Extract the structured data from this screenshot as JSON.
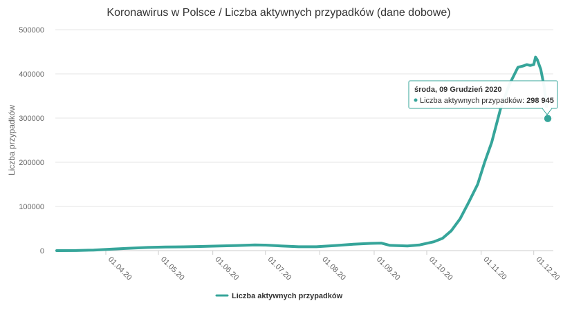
{
  "chart_data": {
    "type": "line",
    "title": "Koronawirus w Polsce / Liczba aktywnych przypadków (dane dobowe)",
    "xlabel": "",
    "ylabel": "Liczba przypadków",
    "ylim": [
      0,
      500000
    ],
    "yticks": [
      0,
      100000,
      200000,
      300000,
      400000,
      500000
    ],
    "ytick_labels": [
      "0",
      "100000",
      "200000",
      "300000",
      "400000",
      "500000"
    ],
    "xlim": [
      "2020-03-04",
      "2020-12-09"
    ],
    "xticks": [
      "2020-04-01",
      "2020-05-01",
      "2020-06-01",
      "2020-07-01",
      "2020-08-01",
      "2020-09-01",
      "2020-10-01",
      "2020-11-01",
      "2020-12-01"
    ],
    "xtick_labels": [
      "01.04.20",
      "01.05.20",
      "01.06.20",
      "01.07.20",
      "01.08.20",
      "01.09.20",
      "01.10.20",
      "01.11.20",
      "01.12.20"
    ],
    "grid": true,
    "legend": "bottom",
    "color": "#36a59a",
    "series": [
      {
        "name": "Liczba aktywnych przypadków",
        "points": [
          [
            "2020-03-04",
            0
          ],
          [
            "2020-03-15",
            150
          ],
          [
            "2020-03-25",
            1200
          ],
          [
            "2020-04-05",
            3500
          ],
          [
            "2020-04-15",
            5500
          ],
          [
            "2020-04-25",
            7200
          ],
          [
            "2020-05-05",
            8300
          ],
          [
            "2020-05-15",
            8600
          ],
          [
            "2020-05-25",
            9300
          ],
          [
            "2020-06-05",
            10700
          ],
          [
            "2020-06-15",
            11600
          ],
          [
            "2020-06-25",
            13000
          ],
          [
            "2020-07-01",
            12500
          ],
          [
            "2020-07-10",
            10500
          ],
          [
            "2020-07-20",
            8700
          ],
          [
            "2020-07-30",
            8700
          ],
          [
            "2020-08-10",
            11500
          ],
          [
            "2020-08-20",
            14300
          ],
          [
            "2020-08-30",
            16400
          ],
          [
            "2020-09-05",
            17000
          ],
          [
            "2020-09-10",
            11800
          ],
          [
            "2020-09-20",
            10700
          ],
          [
            "2020-09-27",
            13000
          ],
          [
            "2020-10-05",
            20000
          ],
          [
            "2020-10-10",
            28000
          ],
          [
            "2020-10-15",
            45000
          ],
          [
            "2020-10-20",
            72000
          ],
          [
            "2020-10-25",
            110000
          ],
          [
            "2020-10-30",
            150000
          ],
          [
            "2020-11-03",
            200000
          ],
          [
            "2020-11-07",
            245000
          ],
          [
            "2020-11-12",
            320000
          ],
          [
            "2020-11-17",
            375000
          ],
          [
            "2020-11-22",
            415000
          ],
          [
            "2020-11-25",
            418000
          ],
          [
            "2020-11-27",
            421000
          ],
          [
            "2020-11-29",
            419000
          ],
          [
            "2020-12-01",
            421000
          ],
          [
            "2020-12-02",
            438000
          ],
          [
            "2020-12-03",
            432000
          ],
          [
            "2020-12-05",
            410000
          ],
          [
            "2020-12-07",
            370000
          ],
          [
            "2020-12-09",
            298945
          ]
        ]
      }
    ],
    "tooltip": {
      "date": "środa, 09 Grudzień 2020",
      "label": "Liczba aktywnych przypadków: ",
      "value": "298 945"
    }
  }
}
